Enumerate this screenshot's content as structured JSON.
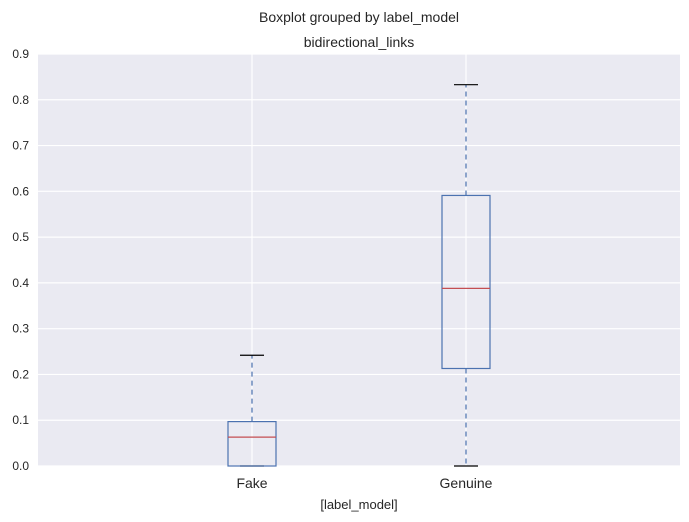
{
  "chart_data": {
    "type": "boxplot",
    "suptitle": "Boxplot grouped by label_model",
    "title": "bidirectional_links",
    "xlabel": "[label_model]",
    "ylabel": "",
    "ylim": [
      0,
      0.9
    ],
    "yticks": [
      "0.0",
      "0.1",
      "0.2",
      "0.3",
      "0.4",
      "0.5",
      "0.6",
      "0.7",
      "0.8",
      "0.9"
    ],
    "grid": true,
    "categories": [
      "Fake",
      "Genuine"
    ],
    "boxes": [
      {
        "category": "Fake",
        "whisker_low": 0.0,
        "q1": 0.0,
        "median": 0.063,
        "q3": 0.097,
        "whisker_high": 0.242
      },
      {
        "category": "Genuine",
        "whisker_low": 0.0,
        "q1": 0.213,
        "median": 0.388,
        "q3": 0.591,
        "whisker_high": 0.833
      }
    ],
    "colors": {
      "background": "#EAEAF2",
      "grid": "#FFFFFF",
      "box": "#4C72B0",
      "median": "#C44E52",
      "cap": "#000000"
    }
  }
}
